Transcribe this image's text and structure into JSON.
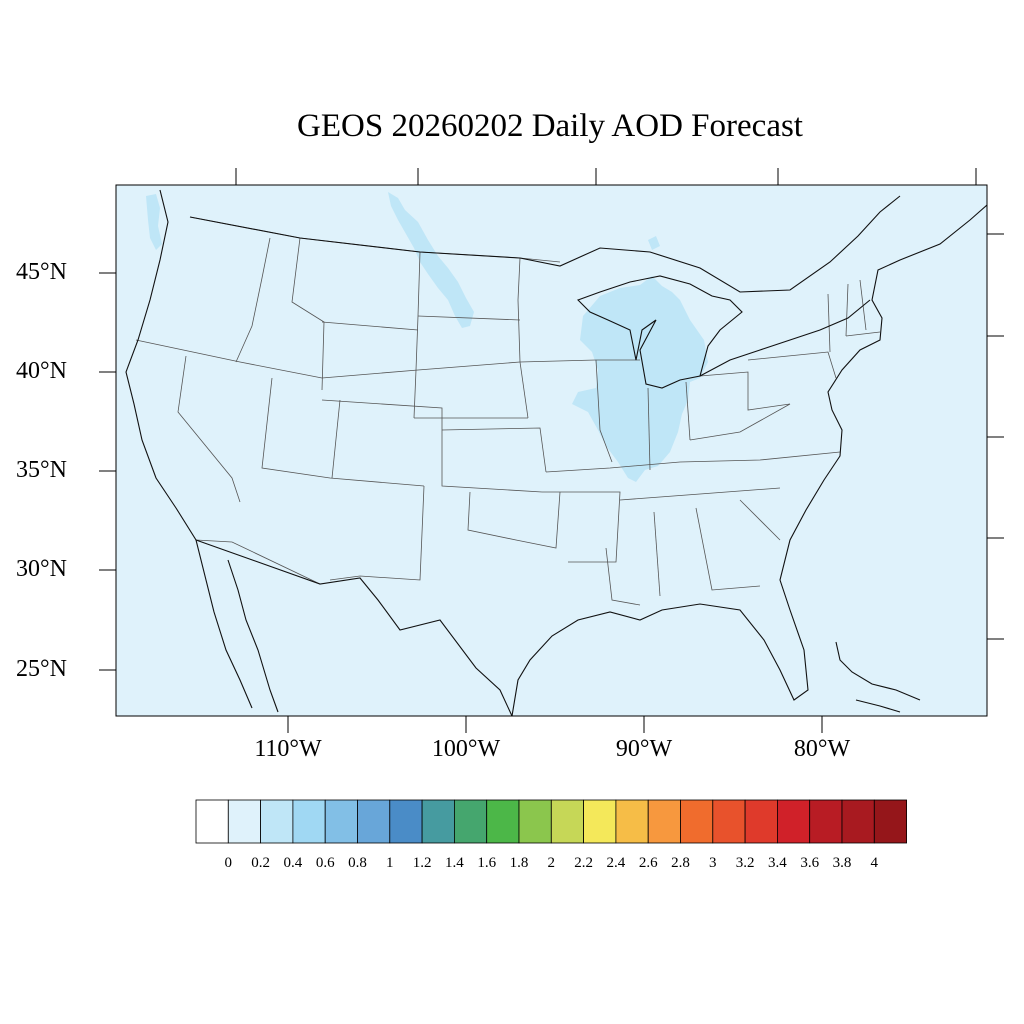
{
  "title": "GEOS 20260202 Daily AOD Forecast",
  "map": {
    "projection": "lambert-conformal",
    "region": "contiguous-united-states",
    "background_color": "#dff2fb",
    "latitude_labels": [
      "45°N",
      "40°N",
      "35°N",
      "30°N",
      "25°N"
    ],
    "longitude_labels": [
      "110°W",
      "100°W",
      "90°W",
      "80°W"
    ],
    "features": [
      {
        "name": "aod-0.2-0.4-northern-plains",
        "level": "0.2-0.4",
        "color": "#bfe6f7"
      },
      {
        "name": "aod-0.2-0.4-great-lakes-midwest",
        "level": "0.2-0.4",
        "color": "#bfe6f7"
      },
      {
        "name": "aod-0.2-0.4-puget-sound",
        "level": "0.2-0.4",
        "color": "#bfe6f7"
      }
    ]
  },
  "colorbar": {
    "levels": [
      "0",
      "0.2",
      "0.4",
      "0.6",
      "0.8",
      "1",
      "1.2",
      "1.4",
      "1.6",
      "1.8",
      "2",
      "2.2",
      "2.4",
      "2.6",
      "2.8",
      "3",
      "3.2",
      "3.4",
      "3.6",
      "3.8",
      "4"
    ],
    "colors": [
      "#ffffff",
      "#dff2fb",
      "#bfe6f7",
      "#a0d8f3",
      "#82bfe6",
      "#68a6d9",
      "#4a8cc7",
      "#469ba0",
      "#45a66e",
      "#4cb748",
      "#8bc64d",
      "#c6d757",
      "#f4e85a",
      "#f6bd47",
      "#f7983e",
      "#f06c2d",
      "#e8522c",
      "#df3a2b",
      "#d02129",
      "#b81c24",
      "#a81a20",
      "#95161a"
    ]
  }
}
